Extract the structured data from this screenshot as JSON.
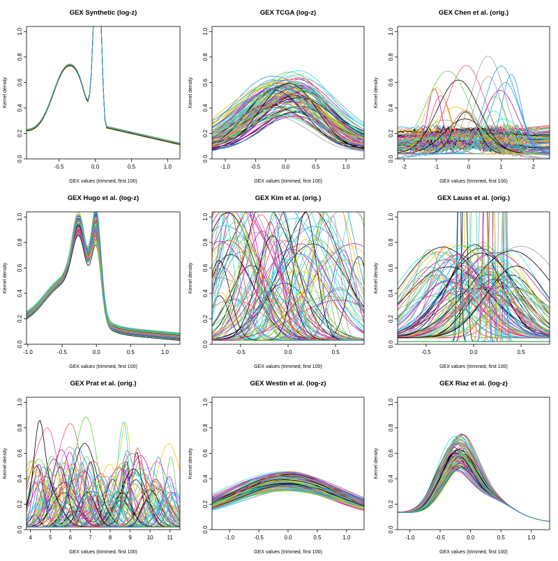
{
  "figure": {
    "ylabel": "Kernel density",
    "xlabel": "GEX values (trimmed, first 100)"
  },
  "chart_data": [
    {
      "type": "line",
      "title": "GEX  Synthetic (log-z)",
      "xlim": [
        -0.95,
        1.17
      ],
      "ylim": [
        0,
        1.04
      ],
      "xticks": [
        -0.5,
        0.0,
        0.5,
        1.0
      ],
      "xtick_labels": [
        "-0.5",
        "0.0",
        "0.5",
        "1.0"
      ],
      "yticks": [
        0,
        0.2,
        0.4,
        0.6,
        0.8,
        1.0
      ],
      "ytick_labels": [
        "0.0",
        "0.2",
        "0.4",
        "0.6",
        "0.8",
        "1.0"
      ],
      "pattern": "synthetic",
      "num_series": 100
    },
    {
      "type": "line",
      "title": "GEX TCGA (log-z)",
      "xlim": [
        -1.22,
        1.3
      ],
      "ylim": [
        0,
        1.04
      ],
      "xticks": [
        -1.0,
        -0.5,
        0.0,
        0.5,
        1.0
      ],
      "xtick_labels": [
        "-1.0",
        "-0.5",
        "0.0",
        "0.5",
        "1.0"
      ],
      "yticks": [
        0,
        0.2,
        0.4,
        0.6,
        0.8,
        1.0
      ],
      "ytick_labels": [
        "0.0",
        "0.2",
        "0.4",
        "0.6",
        "0.8",
        "1.0"
      ],
      "pattern": "unimodal",
      "num_series": 100
    },
    {
      "type": "line",
      "title": "GEX Chen et al. (orig.)",
      "xlim": [
        -2.2,
        2.5
      ],
      "ylim": [
        0,
        1.04
      ],
      "xticks": [
        -2,
        -1,
        0,
        1,
        2
      ],
      "xtick_labels": [
        "-2",
        "-1",
        "0",
        "1",
        "2"
      ],
      "yticks": [
        0,
        0.2,
        0.4,
        0.6,
        0.8,
        1.0
      ],
      "ytick_labels": [
        "0.0",
        "0.2",
        "0.4",
        "0.6",
        "0.8",
        "1.0"
      ],
      "pattern": "scattered",
      "num_series": 100
    },
    {
      "type": "line",
      "title": "GEX Hugo et al. (log-z)",
      "xlim": [
        -1.02,
        1.22
      ],
      "ylim": [
        0,
        1.04
      ],
      "xticks": [
        -1.0,
        -0.5,
        0.0,
        0.5,
        1.0
      ],
      "xtick_labels": [
        "-1.0",
        "-0.5",
        "0.0",
        "0.5",
        "1.0"
      ],
      "yticks": [
        0,
        0.2,
        0.4,
        0.6,
        0.8,
        1.0
      ],
      "ytick_labels": [
        "0.0",
        "0.2",
        "0.4",
        "0.6",
        "0.8",
        "1.0"
      ],
      "pattern": "bimodal",
      "num_series": 100
    },
    {
      "type": "line",
      "title": "GEX Kim et al. (orig.)",
      "xlim": [
        -0.8,
        0.8
      ],
      "ylim": [
        0,
        1.04
      ],
      "xticks": [
        -0.5,
        0.0,
        0.5
      ],
      "xtick_labels": [
        "-0.5",
        "0.0",
        "0.5"
      ],
      "yticks": [
        0,
        0.2,
        0.4,
        0.6,
        0.8,
        1.0
      ],
      "ytick_labels": [
        "0.0",
        "0.2",
        "0.4",
        "0.6",
        "0.8",
        "1.0"
      ],
      "pattern": "messy",
      "num_series": 100
    },
    {
      "type": "line",
      "title": "GEX Lauss et al. (orig.)",
      "xlim": [
        -0.8,
        0.8
      ],
      "ylim": [
        0,
        1.04
      ],
      "xticks": [
        -0.5,
        0.0,
        0.5
      ],
      "xtick_labels": [
        "-0.5",
        "0.0",
        "0.5"
      ],
      "yticks": [
        0,
        0.2,
        0.4,
        0.6,
        0.8,
        1.0
      ],
      "ytick_labels": [
        "0.0",
        "0.2",
        "0.4",
        "0.6",
        "0.8",
        "1.0"
      ],
      "pattern": "lauss",
      "num_series": 100
    },
    {
      "type": "line",
      "title": "GEX Prat et al. (orig.)",
      "xlim": [
        3.8,
        11.5
      ],
      "ylim": [
        0,
        1.04
      ],
      "xticks": [
        4,
        5,
        6,
        7,
        8,
        9,
        10,
        11
      ],
      "xtick_labels": [
        "4",
        "5",
        "6",
        "7",
        "8",
        "9",
        "10",
        "11"
      ],
      "yticks": [
        0,
        0.2,
        0.4,
        0.6,
        0.8,
        1.0
      ],
      "ytick_labels": [
        "0.0",
        "0.2",
        "0.4",
        "0.6",
        "0.8",
        "1.0"
      ],
      "pattern": "prat",
      "num_series": 100
    },
    {
      "type": "line",
      "title": "GEX Westin et al. (log-z)",
      "xlim": [
        -1.3,
        1.3
      ],
      "ylim": [
        0,
        1.04
      ],
      "xticks": [
        -1.0,
        -0.5,
        0.0,
        0.5,
        1.0
      ],
      "xtick_labels": [
        "-1.0",
        "-0.5",
        "0.0",
        "0.5",
        "1.0"
      ],
      "yticks": [
        0,
        0.2,
        0.4,
        0.6,
        0.8,
        1.0
      ],
      "ytick_labels": [
        "0.0",
        "0.2",
        "0.4",
        "0.6",
        "0.8",
        "1.0"
      ],
      "pattern": "flat",
      "num_series": 100
    },
    {
      "type": "line",
      "title": "GEX Riaz et al. (log-z)",
      "xlim": [
        -1.2,
        1.3
      ],
      "ylim": [
        0,
        1.04
      ],
      "xticks": [
        -1.0,
        -0.5,
        0.0,
        0.5,
        1.0
      ],
      "xtick_labels": [
        "-1.0",
        "-0.5",
        "0.0",
        "0.5",
        "1.0"
      ],
      "yticks": [
        0,
        0.2,
        0.4,
        0.6,
        0.8,
        1.0
      ],
      "ytick_labels": [
        "0.0",
        "0.2",
        "0.4",
        "0.6",
        "0.8",
        "1.0"
      ],
      "pattern": "riaz",
      "num_series": 100
    }
  ],
  "palette": [
    "#000000",
    "#df536b",
    "#61d04f",
    "#2297e6",
    "#28e2e5",
    "#cd0bbc",
    "#f5c710",
    "#9e9e9e"
  ]
}
